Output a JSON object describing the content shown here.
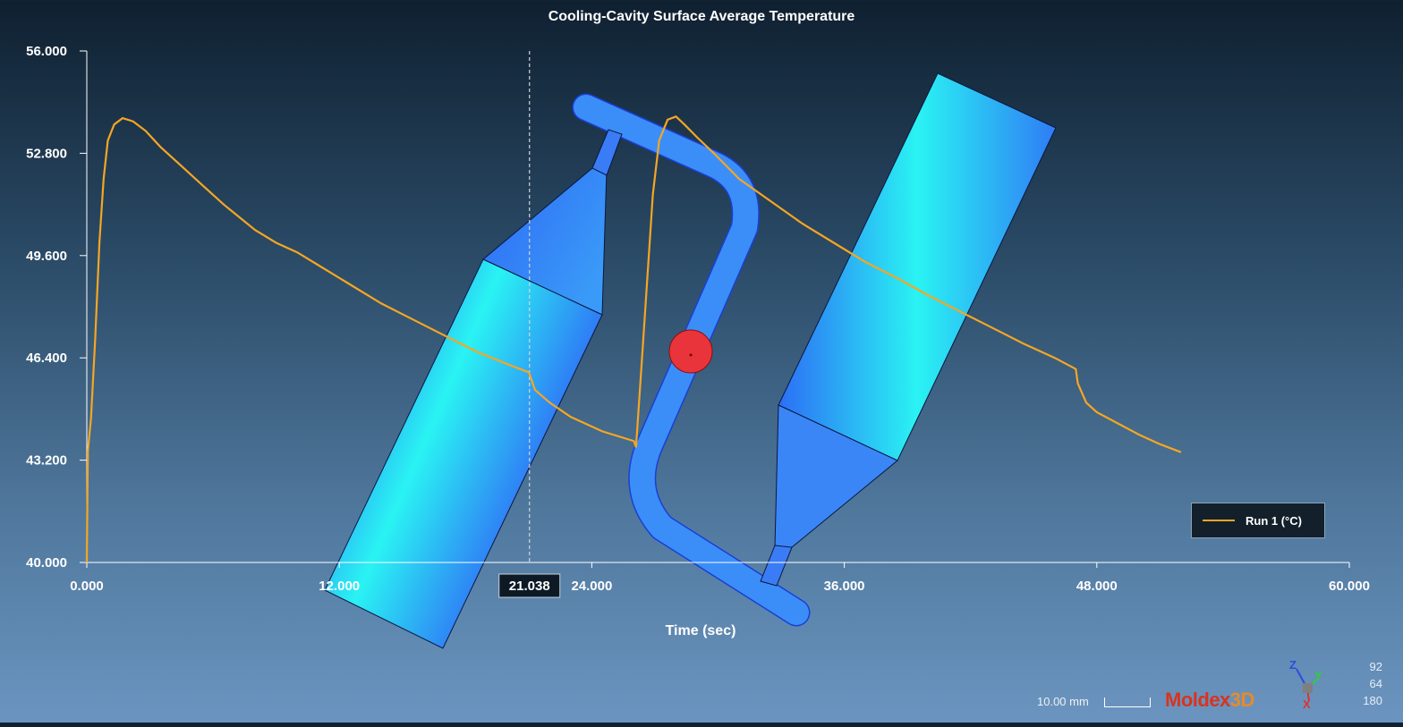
{
  "chart_data": {
    "type": "line",
    "title": "Cooling-Cavity Surface Average Temperature",
    "xlabel": "Time (sec)",
    "ylabel": "",
    "xlim": [
      0,
      60
    ],
    "ylim": [
      40,
      56
    ],
    "x_ticks": [
      "0.000",
      "12.000",
      "24.000",
      "36.000",
      "48.000",
      "60.000"
    ],
    "y_ticks": [
      "40.000",
      "43.200",
      "46.400",
      "49.600",
      "52.800",
      "56.000"
    ],
    "cursor": {
      "x": 21.038,
      "label": "21.038"
    },
    "series": [
      {
        "name": "Run 1 (°C)",
        "color": "#f5a623",
        "x": [
          0,
          0.05,
          0.2,
          0.4,
          0.6,
          0.8,
          1.0,
          1.3,
          1.7,
          2.2,
          2.8,
          3.5,
          4.5,
          5.5,
          6.5,
          8.0,
          9.0,
          10.0,
          11.0,
          12.5,
          14.0,
          15.5,
          17.0,
          18.5,
          20.0,
          21.0,
          21.038,
          21.3,
          22.0,
          23.0,
          24.5,
          26.0,
          26.1,
          26.4,
          26.9,
          27.2,
          27.6,
          28.0,
          28.4,
          29.0,
          29.8,
          31.0,
          32.5,
          34.0,
          35.5,
          37.0,
          38.5,
          40.0,
          41.5,
          43.0,
          44.5,
          46.0,
          47.0,
          47.1,
          47.5,
          48.0,
          49.0,
          50.0,
          51.0,
          52.0
        ],
        "y": [
          40.0,
          43.5,
          44.5,
          47.0,
          50.0,
          52.0,
          53.2,
          53.7,
          53.9,
          53.8,
          53.5,
          53.0,
          52.4,
          51.8,
          51.2,
          50.4,
          50.0,
          49.7,
          49.3,
          48.7,
          48.1,
          47.6,
          47.1,
          46.6,
          46.2,
          45.95,
          45.9,
          45.4,
          45.0,
          44.55,
          44.1,
          43.8,
          43.6,
          46.5,
          51.5,
          53.2,
          53.85,
          53.95,
          53.7,
          53.3,
          52.8,
          52.0,
          51.3,
          50.6,
          50.0,
          49.4,
          48.9,
          48.35,
          47.85,
          47.35,
          46.85,
          46.4,
          46.05,
          45.6,
          45.0,
          44.7,
          44.35,
          44.0,
          43.7,
          43.45
        ]
      }
    ],
    "legend_position": "bottom-right",
    "grid": false
  },
  "overlay": {
    "scale_label": "10.00 mm",
    "brand_part1": "Moldex",
    "brand_part2": "3D",
    "triad": {
      "z": "Z",
      "y": "Y",
      "x": "X"
    },
    "view_angles": [
      "92",
      "64",
      "180"
    ]
  }
}
